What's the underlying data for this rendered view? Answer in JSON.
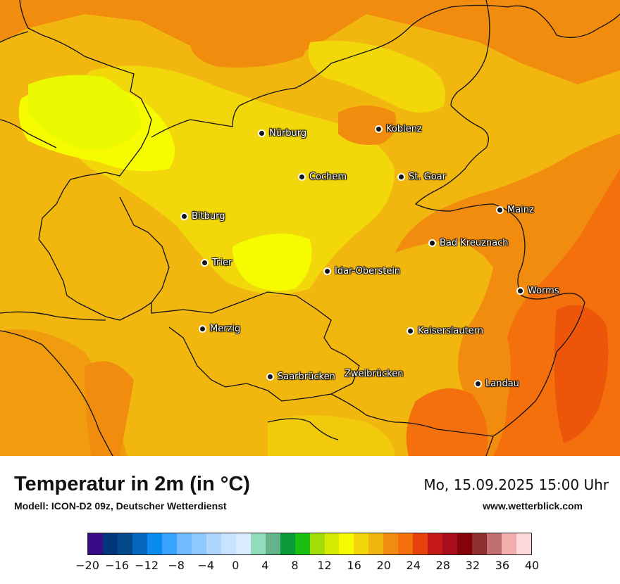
{
  "map": {
    "cities": [
      {
        "name": "Nürburg"
      },
      {
        "name": "Koblenz"
      },
      {
        "name": "Cochem"
      },
      {
        "name": "St. Goar"
      },
      {
        "name": "Bitburg"
      },
      {
        "name": "Mainz"
      },
      {
        "name": "Bad Kreuznach"
      },
      {
        "name": "Trier"
      },
      {
        "name": "Idar-Oberstein"
      },
      {
        "name": "Worms"
      },
      {
        "name": "Merzig"
      },
      {
        "name": "Kaiserslautern"
      },
      {
        "name": "Saarbrücken"
      },
      {
        "name": "Zweibrücken"
      },
      {
        "name": "Landau"
      }
    ]
  },
  "header": {
    "title": "Temperatur in 2m (in °C)",
    "subtitle": "Modell: ICON-D2 09z, Deutscher Wetterdienst",
    "datetime": "Mo, 15.09.2025 15:00 Uhr",
    "website": "www.wetterblick.com"
  },
  "legend": {
    "colors": [
      "#3a0b87",
      "#03357a",
      "#044a8a",
      "#0467bd",
      "#0b8bf0",
      "#3aa3ff",
      "#74baff",
      "#8ec8ff",
      "#aed6ff",
      "#c8e2ff",
      "#d9ecff",
      "#92dbbc",
      "#63b38b",
      "#0b9a3a",
      "#1bbf12",
      "#a2dd05",
      "#d4ea00",
      "#f6fb00",
      "#f2d70a",
      "#f1b70f",
      "#f18c0e",
      "#f4700c",
      "#e8400b",
      "#c41717",
      "#a80e1a",
      "#840208",
      "#8c2f2f",
      "#c07070",
      "#f1b0ad",
      "#ffd8da"
    ],
    "ticks": [
      "−20",
      "−16",
      "−12",
      "−8",
      "−4",
      "0",
      "4",
      "8",
      "12",
      "16",
      "20",
      "24",
      "28",
      "32",
      "36",
      "40"
    ]
  }
}
